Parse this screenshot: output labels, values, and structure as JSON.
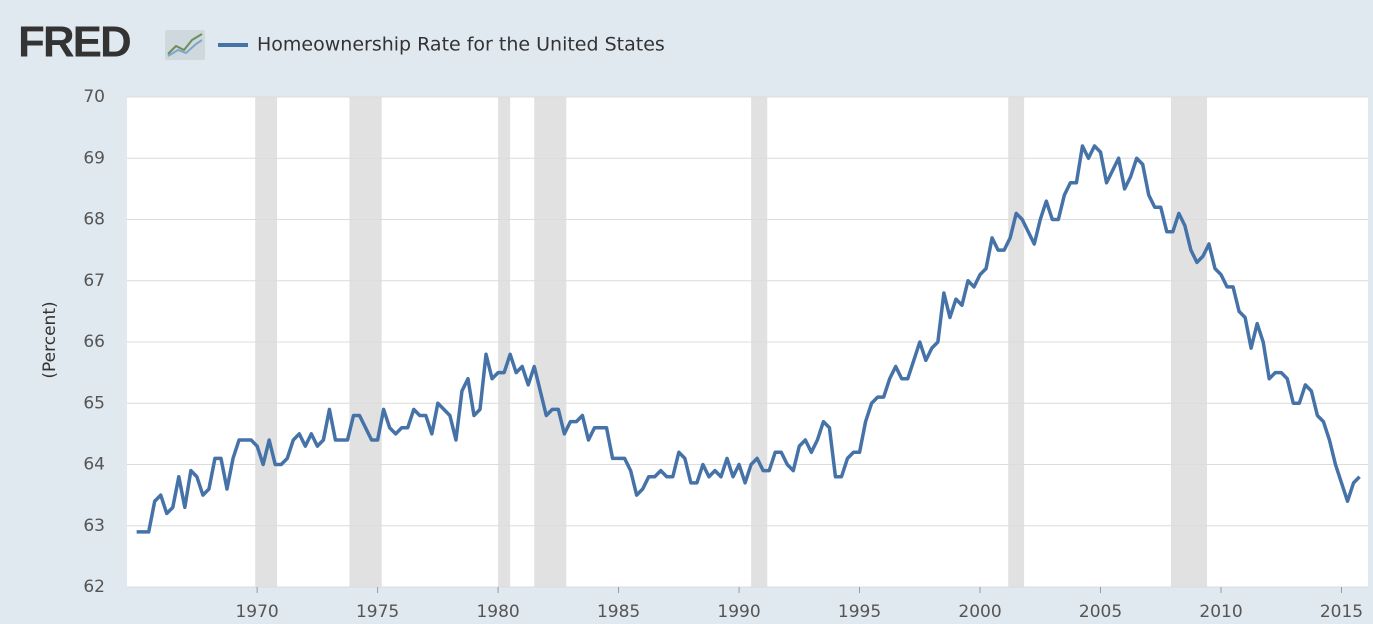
{
  "chart_data": {
    "type": "line",
    "brand": "FRED",
    "ylabel": "(Percent)",
    "xlim": [
      1964.6,
      2016.1
    ],
    "ylim": [
      62,
      70
    ],
    "xticks": [
      1970,
      1975,
      1980,
      1985,
      1990,
      1995,
      2000,
      2005,
      2010,
      2015
    ],
    "yticks": [
      62,
      63,
      64,
      65,
      66,
      67,
      68,
      69,
      70
    ],
    "grid": true,
    "recessions": [
      [
        1969.92,
        1970.83
      ],
      [
        1973.83,
        1975.17
      ],
      [
        1980.0,
        1980.5
      ],
      [
        1981.5,
        1982.83
      ],
      [
        1990.5,
        1991.17
      ],
      [
        2001.17,
        2001.83
      ],
      [
        2007.92,
        2009.42
      ]
    ],
    "x": [
      1965,
      1965.25,
      1965.5,
      1965.75,
      1966,
      1966.25,
      1966.5,
      1966.75,
      1967,
      1967.25,
      1967.5,
      1967.75,
      1968,
      1968.25,
      1968.5,
      1968.75,
      1969,
      1969.25,
      1969.5,
      1969.75,
      1970,
      1970.25,
      1970.5,
      1970.75,
      1971,
      1971.25,
      1971.5,
      1971.75,
      1972,
      1972.25,
      1972.5,
      1972.75,
      1973,
      1973.25,
      1973.5,
      1973.75,
      1974,
      1974.25,
      1974.5,
      1974.75,
      1975,
      1975.25,
      1975.5,
      1975.75,
      1976,
      1976.25,
      1976.5,
      1976.75,
      1977,
      1977.25,
      1977.5,
      1977.75,
      1978,
      1978.25,
      1978.5,
      1978.75,
      1979,
      1979.25,
      1979.5,
      1979.75,
      1980,
      1980.25,
      1980.5,
      1980.75,
      1981,
      1981.25,
      1981.5,
      1981.75,
      1982,
      1982.25,
      1982.5,
      1982.75,
      1983,
      1983.25,
      1983.5,
      1983.75,
      1984,
      1984.25,
      1984.5,
      1984.75,
      1985,
      1985.25,
      1985.5,
      1985.75,
      1986,
      1986.25,
      1986.5,
      1986.75,
      1987,
      1987.25,
      1987.5,
      1987.75,
      1988,
      1988.25,
      1988.5,
      1988.75,
      1989,
      1989.25,
      1989.5,
      1989.75,
      1990,
      1990.25,
      1990.5,
      1990.75,
      1991,
      1991.25,
      1991.5,
      1991.75,
      1992,
      1992.25,
      1992.5,
      1992.75,
      1993,
      1993.25,
      1993.5,
      1993.75,
      1994,
      1994.25,
      1994.5,
      1994.75,
      1995,
      1995.25,
      1995.5,
      1995.75,
      1996,
      1996.25,
      1996.5,
      1996.75,
      1997,
      1997.25,
      1997.5,
      1997.75,
      1998,
      1998.25,
      1998.5,
      1998.75,
      1999,
      1999.25,
      1999.5,
      1999.75,
      2000,
      2000.25,
      2000.5,
      2000.75,
      2001,
      2001.25,
      2001.5,
      2001.75,
      2002,
      2002.25,
      2002.5,
      2002.75,
      2003,
      2003.25,
      2003.5,
      2003.75,
      2004,
      2004.25,
      2004.5,
      2004.75,
      2005,
      2005.25,
      2005.5,
      2005.75,
      2006,
      2006.25,
      2006.5,
      2006.75,
      2007,
      2007.25,
      2007.5,
      2007.75,
      2008,
      2008.25,
      2008.5,
      2008.75,
      2009,
      2009.25,
      2009.5,
      2009.75,
      2010,
      2010.25,
      2010.5,
      2010.75,
      2011,
      2011.25,
      2011.5,
      2011.75,
      2012,
      2012.25,
      2012.5,
      2012.75,
      2013,
      2013.25,
      2013.5,
      2013.75,
      2014,
      2014.25,
      2014.5,
      2014.75,
      2015,
      2015.25,
      2015.5,
      2015.75
    ],
    "series": [
      {
        "name": "Homeownership Rate for the United States",
        "color": "#4572a7",
        "values": [
          62.9,
          62.9,
          62.9,
          63.4,
          63.5,
          63.2,
          63.3,
          63.8,
          63.3,
          63.9,
          63.8,
          63.5,
          63.6,
          64.1,
          64.1,
          63.6,
          64.1,
          64.4,
          64.4,
          64.4,
          64.3,
          64.0,
          64.4,
          64.0,
          64.0,
          64.1,
          64.4,
          64.5,
          64.3,
          64.5,
          64.3,
          64.4,
          64.9,
          64.4,
          64.4,
          64.4,
          64.8,
          64.8,
          64.6,
          64.4,
          64.4,
          64.9,
          64.6,
          64.5,
          64.6,
          64.6,
          64.9,
          64.8,
          64.8,
          64.5,
          65.0,
          64.9,
          64.8,
          64.4,
          65.2,
          65.4,
          64.8,
          64.9,
          65.8,
          65.4,
          65.5,
          65.5,
          65.8,
          65.5,
          65.6,
          65.3,
          65.6,
          65.2,
          64.8,
          64.9,
          64.9,
          64.5,
          64.7,
          64.7,
          64.8,
          64.4,
          64.6,
          64.6,
          64.6,
          64.1,
          64.1,
          64.1,
          63.9,
          63.5,
          63.6,
          63.8,
          63.8,
          63.9,
          63.8,
          63.8,
          64.2,
          64.1,
          63.7,
          63.7,
          64.0,
          63.8,
          63.9,
          63.8,
          64.1,
          63.8,
          64.0,
          63.7,
          64.0,
          64.1,
          63.9,
          63.9,
          64.2,
          64.2,
          64.0,
          63.9,
          64.3,
          64.4,
          64.2,
          64.4,
          64.7,
          64.6,
          63.8,
          63.8,
          64.1,
          64.2,
          64.2,
          64.7,
          65.0,
          65.1,
          65.1,
          65.4,
          65.6,
          65.4,
          65.4,
          65.7,
          66.0,
          65.7,
          65.9,
          66.0,
          66.8,
          66.4,
          66.7,
          66.6,
          67.0,
          66.9,
          67.1,
          67.2,
          67.7,
          67.5,
          67.5,
          67.7,
          68.1,
          68.0,
          67.8,
          67.6,
          68.0,
          68.3,
          68.0,
          68.0,
          68.4,
          68.6,
          68.6,
          69.2,
          69.0,
          69.2,
          69.1,
          68.6,
          68.8,
          69.0,
          68.5,
          68.7,
          69.0,
          68.9,
          68.4,
          68.2,
          68.2,
          67.8,
          67.8,
          68.1,
          67.9,
          67.5,
          67.3,
          67.4,
          67.6,
          67.2,
          67.1,
          66.9,
          66.9,
          66.5,
          66.4,
          65.9,
          66.3,
          66.0,
          65.4,
          65.5,
          65.5,
          65.4,
          65.0,
          65.0,
          65.3,
          65.2,
          64.8,
          64.7,
          64.4,
          64.0,
          63.7,
          63.4,
          63.7,
          63.8
        ]
      }
    ]
  }
}
